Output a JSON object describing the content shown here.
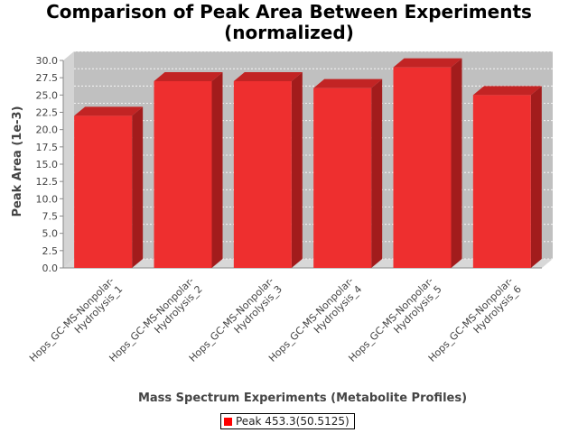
{
  "chart_data": {
    "type": "bar",
    "title": "Comparison of Peak Area Between Experiments",
    "subtitle": "(normalized)",
    "xlabel": "Mass Spectrum Experiments (Metabolite Profiles)",
    "ylabel": "Peak Area (1e-3)",
    "ylim": [
      0,
      30
    ],
    "yticks": [
      "0.0",
      "2.5",
      "5.0",
      "7.5",
      "10.0",
      "12.5",
      "15.0",
      "17.5",
      "20.0",
      "22.5",
      "25.0",
      "27.5",
      "30.0"
    ],
    "categories": [
      [
        "Hops_GC-MS-Nonpolar-",
        "Hydrolysis_1"
      ],
      [
        "Hops_GC-MS-Nonpolar-",
        "Hydrolysis_2"
      ],
      [
        "Hops_GC-MS-Nonpolar-",
        "Hydrolysis_3"
      ],
      [
        "Hops_GC-MS-Nonpolar-",
        "Hydrolysis_4"
      ],
      [
        "Hops_GC-MS-Nonpolar-",
        "Hydrolysis_5"
      ],
      [
        "Hops_GC-MS-Nonpolar-",
        "Hydrolysis_6"
      ]
    ],
    "series": [
      {
        "name": "Peak 453.3(50.5125)",
        "values": [
          22.0,
          27.0,
          27.0,
          26.0,
          29.0,
          25.0
        ]
      }
    ],
    "grid": true,
    "legend": "bottom-center",
    "style": "3d",
    "colors": {
      "bar_front": "#ee2f2f",
      "bar_top": "#c22424",
      "bar_side": "#a21c1c",
      "plot_background": "#c0c0c0",
      "plot_side": "#d4d4d4",
      "plot_floor": "#d8d8d8",
      "legend_swatch": "#ff0000"
    }
  }
}
